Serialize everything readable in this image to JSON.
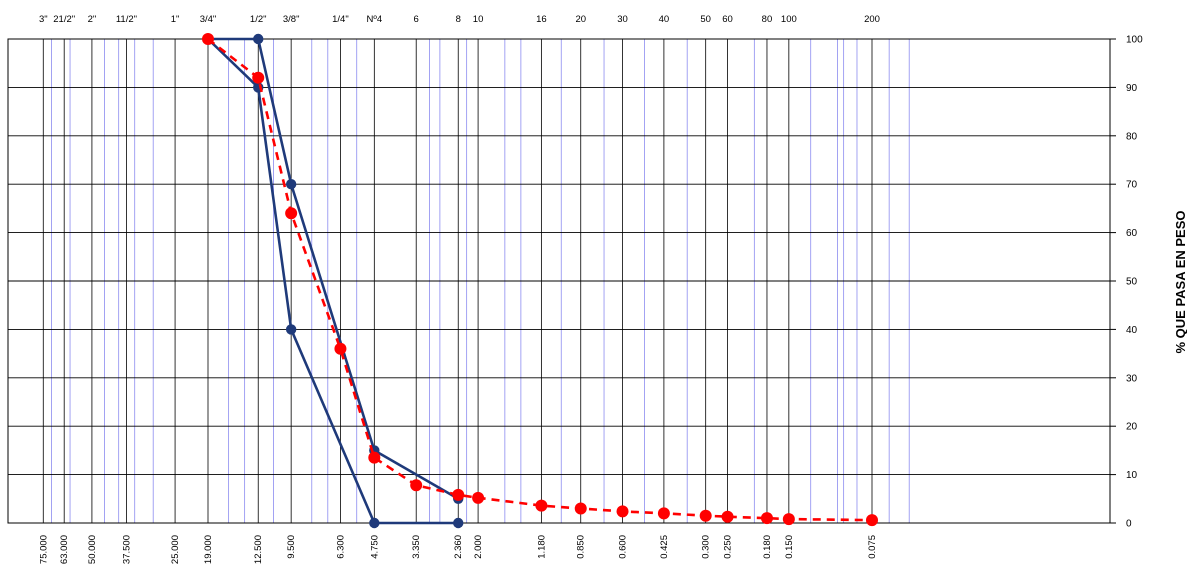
{
  "chart_data": {
    "type": "line",
    "x_scale": "log",
    "x_reversed": true,
    "xlim": [
      80,
      0.04
    ],
    "ylim": [
      0,
      100
    ],
    "ylabel": "% QUE PASA EN PESO",
    "grid": true,
    "y_ticks": [
      0,
      10,
      20,
      30,
      40,
      50,
      60,
      70,
      80,
      90,
      100
    ],
    "sieve_labels_top": [
      {
        "label": "3\"",
        "x": 75.0
      },
      {
        "label": "21/2\"",
        "x": 63.0
      },
      {
        "label": "2\"",
        "x": 50.0
      },
      {
        "label": "11/2\"",
        "x": 37.5
      },
      {
        "label": "1\"",
        "x": 25.0
      },
      {
        "label": "3/4\"",
        "x": 19.0
      },
      {
        "label": "1/2\"",
        "x": 12.5
      },
      {
        "label": "3/8\"",
        "x": 9.5
      },
      {
        "label": "1/4\"",
        "x": 6.3
      },
      {
        "label": "Nº4",
        "x": 4.75
      },
      {
        "label": "6",
        "x": 3.35
      },
      {
        "label": "8",
        "x": 2.36
      },
      {
        "label": "10",
        "x": 2.0
      },
      {
        "label": "16",
        "x": 1.18
      },
      {
        "label": "20",
        "x": 0.85
      },
      {
        "label": "30",
        "x": 0.6
      },
      {
        "label": "40",
        "x": 0.425
      },
      {
        "label": "50",
        "x": 0.3
      },
      {
        "label": "60",
        "x": 0.25
      },
      {
        "label": "80",
        "x": 0.18
      },
      {
        "label": "100",
        "x": 0.15
      },
      {
        "label": "200",
        "x": 0.075
      }
    ],
    "sieve_labels_bottom": [
      {
        "label": "75.000",
        "x": 75.0
      },
      {
        "label": "63.000",
        "x": 63.0
      },
      {
        "label": "50.000",
        "x": 50.0
      },
      {
        "label": "37.500",
        "x": 37.5
      },
      {
        "label": "25.000",
        "x": 25.0
      },
      {
        "label": "19.000",
        "x": 19.0
      },
      {
        "label": "12.500",
        "x": 12.5
      },
      {
        "label": "9.500",
        "x": 9.5
      },
      {
        "label": "6.300",
        "x": 6.3
      },
      {
        "label": "4.750",
        "x": 4.75
      },
      {
        "label": "3.350",
        "x": 3.35
      },
      {
        "label": "2.360",
        "x": 2.36
      },
      {
        "label": "2.000",
        "x": 2.0
      },
      {
        "label": "1.180",
        "x": 1.18
      },
      {
        "label": "0.850",
        "x": 0.85
      },
      {
        "label": "0.600",
        "x": 0.6
      },
      {
        "label": "0.425",
        "x": 0.425
      },
      {
        "label": "0.300",
        "x": 0.3
      },
      {
        "label": "0.250",
        "x": 0.25
      },
      {
        "label": "0.180",
        "x": 0.18
      },
      {
        "label": "0.150",
        "x": 0.15
      },
      {
        "label": "0.075",
        "x": 0.075
      }
    ],
    "series": [
      {
        "color": "#1f3a7a",
        "style": "solid",
        "points": [
          [
            19.0,
            100
          ],
          [
            12.5,
            90
          ],
          [
            9.5,
            40
          ],
          [
            4.75,
            0
          ],
          [
            2.36,
            0
          ]
        ]
      },
      {
        "color": "#1f3a7a",
        "style": "solid",
        "points": [
          [
            19.0,
            100
          ],
          [
            12.5,
            100
          ],
          [
            9.5,
            70
          ],
          [
            4.75,
            15
          ],
          [
            2.36,
            5
          ]
        ]
      },
      {
        "color": "#ff0000",
        "style": "dashed",
        "points": [
          [
            19.0,
            100
          ],
          [
            12.5,
            92
          ],
          [
            9.5,
            64
          ],
          [
            6.3,
            36
          ],
          [
            4.75,
            13.5
          ],
          [
            3.35,
            7.8
          ],
          [
            2.36,
            5.8
          ],
          [
            2.0,
            5.2
          ],
          [
            1.18,
            3.6
          ],
          [
            0.85,
            3.0
          ],
          [
            0.6,
            2.4
          ],
          [
            0.425,
            2.0
          ],
          [
            0.3,
            1.5
          ],
          [
            0.25,
            1.3
          ],
          [
            0.18,
            1.0
          ],
          [
            0.15,
            0.8
          ],
          [
            0.075,
            0.6
          ]
        ]
      }
    ],
    "minor_grid_x": [
      70,
      60,
      45,
      40,
      35,
      30,
      16,
      14,
      11,
      8,
      7,
      5.5,
      3.0,
      2.75,
      2.2,
      1.6,
      1.4,
      1.0,
      0.7,
      0.5,
      0.35,
      0.2,
      0.125,
      0.1,
      0.095,
      0.085,
      0.065,
      0.055
    ],
    "colors": {
      "grid_minor": "#8c8cf0",
      "grid_major": "#000000",
      "blue_series": "#1f3a7a",
      "red_series": "#ff0000"
    }
  }
}
